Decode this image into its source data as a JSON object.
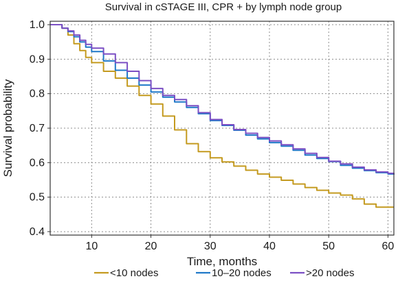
{
  "chart_data": {
    "type": "line",
    "title": "Survival in cSTAGE III, CPR + by lymph node group",
    "xlabel": "Time, months",
    "ylabel": "Survival probability",
    "xlim": [
      3,
      61
    ],
    "ylim": [
      0.39,
      1.01
    ],
    "xticks": [
      10,
      20,
      30,
      40,
      50,
      60
    ],
    "yticks": [
      0.4,
      0.5,
      0.6,
      0.7,
      0.8,
      0.9,
      1.0
    ],
    "ytick_labels": [
      "0.4",
      "0.5",
      "0.6",
      "0.7",
      "0.8",
      "0.9",
      "1.0"
    ],
    "grid": true,
    "legend_position": "bottom",
    "series": [
      {
        "name": "<10 nodes",
        "color": "#c49a1f",
        "x": [
          3,
          4.5,
          5,
          6,
          7,
          8,
          9,
          10,
          12,
          14,
          16,
          18,
          20,
          22,
          24,
          26,
          28,
          30,
          32,
          34,
          36,
          38,
          40,
          42,
          44,
          46,
          48,
          50,
          52,
          54,
          56,
          58,
          60,
          61
        ],
        "y": [
          1.0,
          1.0,
          0.99,
          0.97,
          0.945,
          0.925,
          0.905,
          0.89,
          0.865,
          0.845,
          0.822,
          0.795,
          0.77,
          0.735,
          0.695,
          0.655,
          0.632,
          0.614,
          0.602,
          0.59,
          0.578,
          0.567,
          0.558,
          0.549,
          0.538,
          0.528,
          0.52,
          0.512,
          0.506,
          0.495,
          0.48,
          0.471,
          0.471,
          0.471
        ]
      },
      {
        "name": "10–20 nodes",
        "color": "#1f78c8",
        "x": [
          3,
          4.5,
          5,
          6,
          7,
          8,
          9,
          10,
          12,
          14,
          16,
          18,
          20,
          22,
          24,
          26,
          28,
          30,
          32,
          34,
          36,
          38,
          40,
          42,
          44,
          46,
          48,
          50,
          52,
          54,
          56,
          58,
          60,
          61
        ],
        "y": [
          1.0,
          1.0,
          0.99,
          0.98,
          0.965,
          0.95,
          0.935,
          0.922,
          0.895,
          0.868,
          0.845,
          0.825,
          0.805,
          0.79,
          0.776,
          0.76,
          0.742,
          0.722,
          0.708,
          0.694,
          0.68,
          0.669,
          0.658,
          0.648,
          0.636,
          0.622,
          0.612,
          0.603,
          0.592,
          0.584,
          0.577,
          0.571,
          0.567,
          0.565
        ]
      },
      {
        "name": ">20 nodes",
        "color": "#7b4fc4",
        "x": [
          3,
          4.5,
          5,
          6,
          7,
          8,
          9,
          10,
          12,
          14,
          16,
          18,
          20,
          22,
          24,
          26,
          28,
          30,
          32,
          34,
          36,
          38,
          40,
          42,
          44,
          46,
          48,
          50,
          52,
          54,
          56,
          58,
          60,
          61
        ],
        "y": [
          1.0,
          1.0,
          0.99,
          0.982,
          0.97,
          0.955,
          0.943,
          0.932,
          0.915,
          0.89,
          0.865,
          0.838,
          0.815,
          0.795,
          0.783,
          0.765,
          0.745,
          0.725,
          0.71,
          0.696,
          0.685,
          0.673,
          0.663,
          0.652,
          0.64,
          0.627,
          0.615,
          0.604,
          0.596,
          0.587,
          0.579,
          0.573,
          0.569,
          0.566
        ]
      }
    ]
  },
  "colors": {
    "frame": "#333333",
    "grid": "#8c8c8c",
    "text": "#1a1a1a"
  }
}
